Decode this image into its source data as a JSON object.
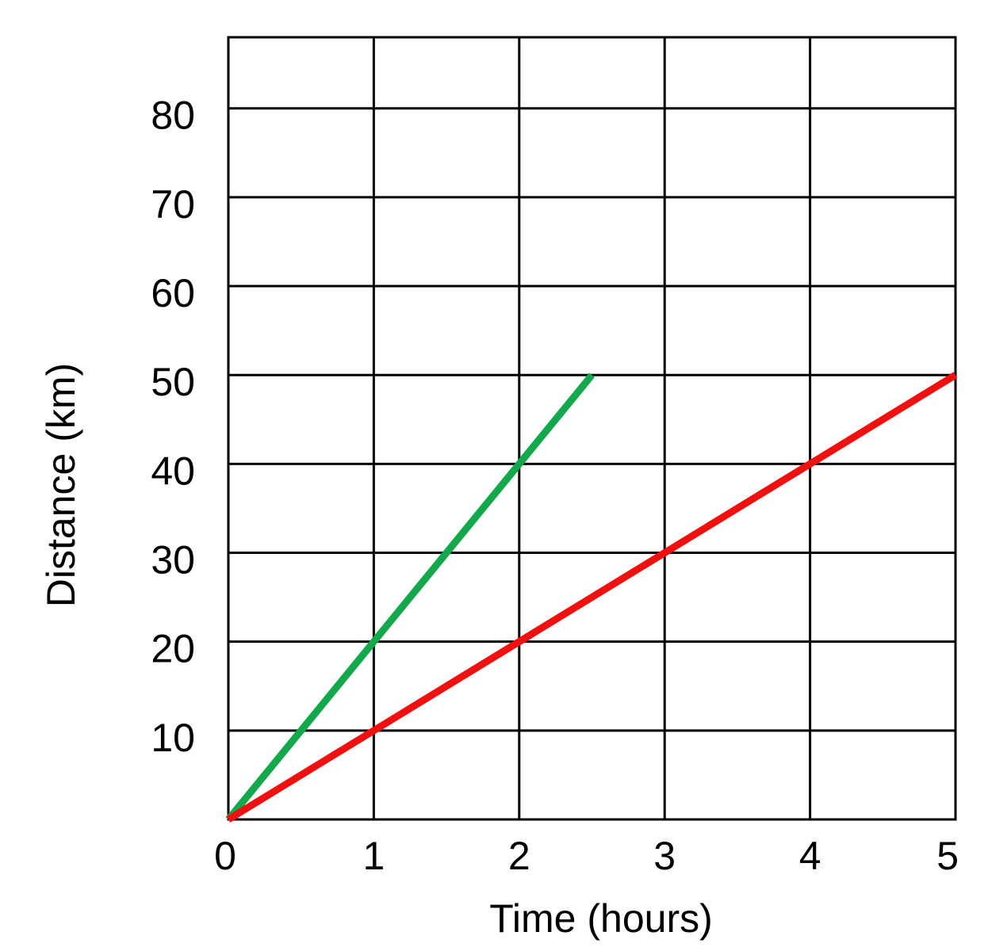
{
  "chart_data": {
    "type": "line",
    "xlabel": "Time (hours)",
    "ylabel": "Distance (km)",
    "xlim": [
      0,
      5
    ],
    "ylim": [
      0,
      88
    ],
    "grid": true,
    "x_ticks": [
      0,
      1,
      2,
      3,
      4,
      5
    ],
    "x_tick_labels": [
      "0",
      "1",
      "2",
      "3",
      "4",
      "5"
    ],
    "y_ticks": [
      10,
      20,
      30,
      40,
      50,
      60,
      70,
      80
    ],
    "y_tick_labels": [
      "10",
      "20",
      "30",
      "40",
      "50",
      "60",
      "70",
      "80"
    ],
    "series": [
      {
        "color": "#12a84b",
        "x": [
          0,
          2.5
        ],
        "y": [
          0,
          50
        ]
      },
      {
        "color": "#f01010",
        "x": [
          0,
          5
        ],
        "y": [
          0,
          50
        ]
      }
    ]
  }
}
